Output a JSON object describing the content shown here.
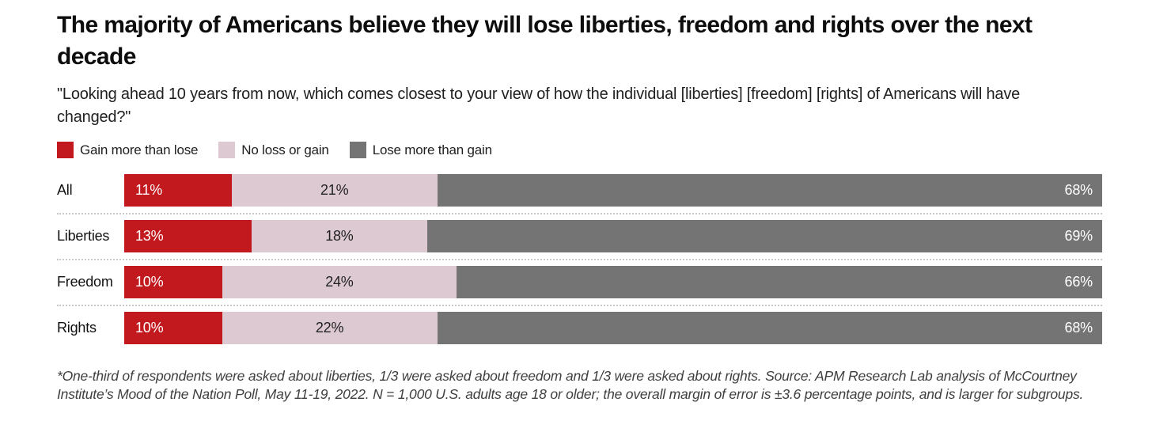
{
  "chart_data": {
    "type": "bar",
    "orientation": "horizontal",
    "stacked": true,
    "title": "The majority of Americans believe they will lose liberties, freedom and rights over the next decade",
    "subtitle": "\"Looking ahead 10 years from now, which comes closest to your view of how the individual [liberties] [freedom] [rights] of Americans will have changed?\"",
    "categories": [
      "All",
      "Liberties",
      "Freedom",
      "Rights"
    ],
    "series": [
      {
        "name": "Gain more than lose",
        "color": "#c2191f",
        "values": [
          11,
          13,
          10,
          10
        ]
      },
      {
        "name": "No loss or gain",
        "color": "#ddc9d1",
        "values": [
          21,
          18,
          24,
          22
        ]
      },
      {
        "name": "Lose more than gain",
        "color": "#747474",
        "values": [
          68,
          69,
          66,
          68
        ]
      }
    ],
    "value_suffix": "%",
    "xlim": [
      0,
      100
    ],
    "grid": false,
    "legend_position": "top-left",
    "footnote": "*One-third of respondents were asked about liberties, 1/3 were asked about freedom and 1/3 were asked about rights. Source: APM Research Lab analysis of McCourtney Institute’s Mood of the Nation Poll, May 11-19, 2022. N = 1,000 U.S. adults age 18 or older; the overall margin of error is ±3.6 percentage points, and is larger for subgroups."
  },
  "colors": {
    "background": "#ffffff",
    "title_text": "#0d0d0d",
    "body_text": "#1f1f1f",
    "footnote_text": "#3f3f3f",
    "separator": "#c9c9c9"
  }
}
